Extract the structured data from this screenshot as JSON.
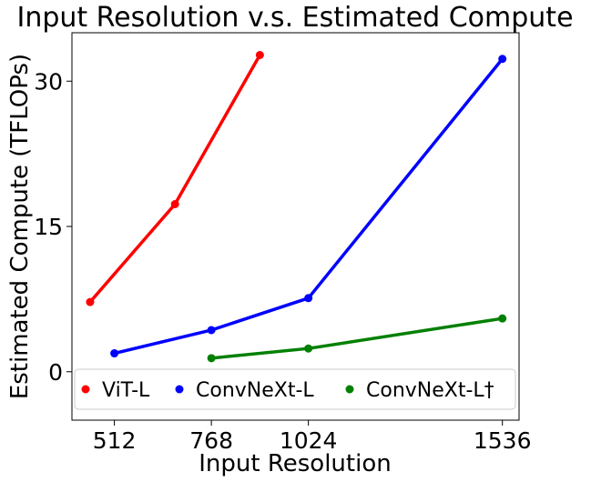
{
  "chart_data": {
    "type": "line",
    "title": "Input Resolution v.s. Estimated Compute",
    "xlabel": "Input Resolution",
    "ylabel": "Estimated Compute (TFLOPs)",
    "xlim": [
      400,
      1580
    ],
    "ylim": [
      -5,
      35
    ],
    "xticks": [
      {
        "value": 512,
        "label": "512"
      },
      {
        "value": 768,
        "label": "768"
      },
      {
        "value": 1024,
        "label": "1024"
      },
      {
        "value": 1536,
        "label": "1536"
      }
    ],
    "yticks": [
      {
        "value": 0,
        "label": "0"
      },
      {
        "value": 15,
        "label": "15"
      },
      {
        "value": 30,
        "label": "30"
      }
    ],
    "grid": false,
    "legend_position": "bottom",
    "series": [
      {
        "name": "ViT-L",
        "color": "#ff0000",
        "x": [
          448,
          672,
          896
        ],
        "y": [
          7.2,
          17.3,
          32.7
        ]
      },
      {
        "name": "ConvNeXt-L",
        "color": "#0000ff",
        "x": [
          512,
          768,
          1024,
          1536
        ],
        "y": [
          1.9,
          4.3,
          7.6,
          32.3
        ]
      },
      {
        "name": "ConvNeXt-L†",
        "color": "#008000",
        "x": [
          768,
          1024,
          1536
        ],
        "y": [
          1.4,
          2.4,
          5.5
        ]
      }
    ]
  }
}
